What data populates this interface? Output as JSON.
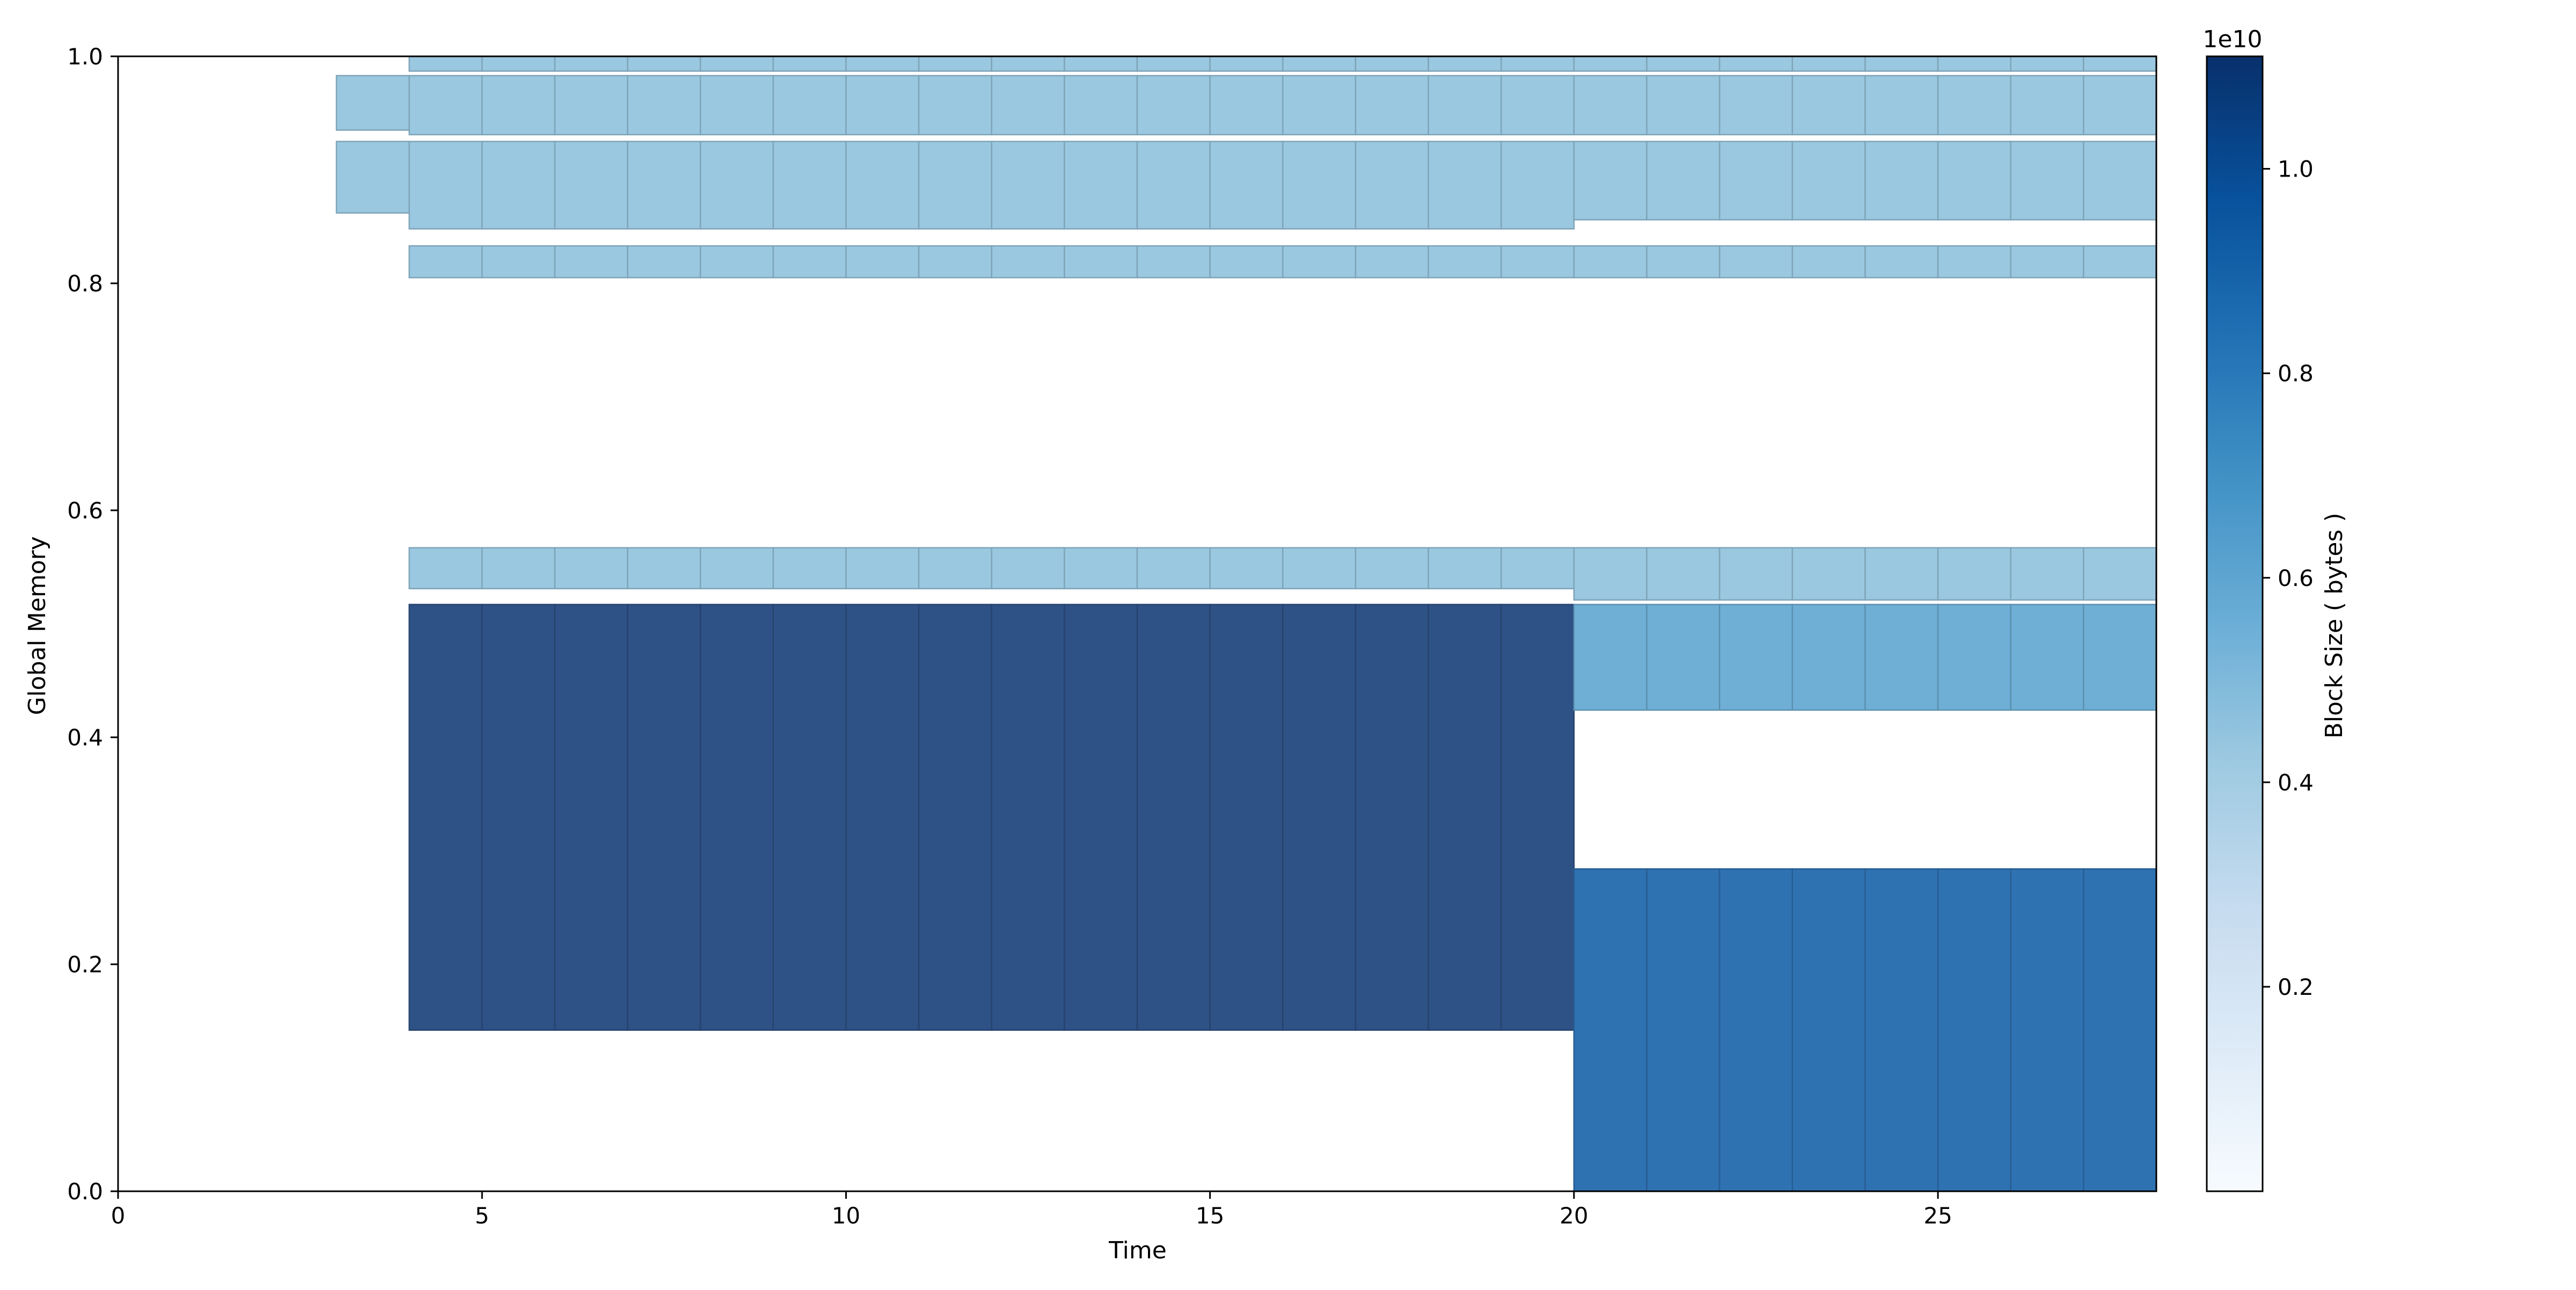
{
  "chart_data": {
    "type": "bar",
    "xlabel": "Time",
    "ylabel": "Global Memory",
    "xlim": [
      0,
      28
    ],
    "ylim": [
      0,
      1
    ],
    "xticks": [
      0,
      5,
      10,
      15,
      20,
      25
    ],
    "yticks": [
      0.0,
      0.2,
      0.4,
      0.6,
      0.8,
      1.0
    ],
    "xtick_labels": [
      "0",
      "5",
      "10",
      "15",
      "20",
      "25"
    ],
    "ytick_labels": [
      "0.0",
      "0.2",
      "0.4",
      "0.6",
      "0.8",
      "1.0"
    ],
    "grid": false,
    "colormap": "Blues",
    "colorbar": {
      "label": "Block Size ( bytes )",
      "exponent_label": "1e10",
      "range": [
        0,
        11100000000.0
      ],
      "ticks": [
        0.2,
        0.4,
        0.6,
        0.8,
        1.0
      ],
      "tick_labels": [
        "0.2",
        "0.4",
        "0.6",
        "0.8",
        "1.0"
      ]
    },
    "blocks": [
      {
        "t_start": 4,
        "t_end": 28,
        "y_start": 0.987,
        "y_end": 1.0,
        "size": 3300000000.0,
        "color": "#9ac8e0"
      },
      {
        "t_start": 3,
        "t_end": 4,
        "y_start": 0.935,
        "y_end": 0.983,
        "size": 3300000000.0,
        "color": "#9ac8e0"
      },
      {
        "t_start": 4,
        "t_end": 28,
        "y_start": 0.931,
        "y_end": 0.983,
        "size": 3300000000.0,
        "color": "#9ac8e0"
      },
      {
        "t_start": 3,
        "t_end": 4,
        "y_start": 0.862,
        "y_end": 0.925,
        "size": 3300000000.0,
        "color": "#9ac8e0"
      },
      {
        "t_start": 4,
        "t_end": 20,
        "y_start": 0.848,
        "y_end": 0.925,
        "size": 3300000000.0,
        "color": "#9ac8e0"
      },
      {
        "t_start": 20,
        "t_end": 28,
        "y_start": 0.856,
        "y_end": 0.925,
        "size": 3300000000.0,
        "color": "#9ac8e0"
      },
      {
        "t_start": 4,
        "t_end": 28,
        "y_start": 0.805,
        "y_end": 0.833,
        "size": 3300000000.0,
        "color": "#9ac8e0"
      },
      {
        "t_start": 4,
        "t_end": 20,
        "y_start": 0.531,
        "y_end": 0.567,
        "size": 3300000000.0,
        "color": "#9ac8e0"
      },
      {
        "t_start": 20,
        "t_end": 28,
        "y_start": 0.521,
        "y_end": 0.567,
        "size": 3300000000.0,
        "color": "#9ac8e0"
      },
      {
        "t_start": 4,
        "t_end": 20,
        "y_start": 0.142,
        "y_end": 0.517,
        "size": 10500000000.0,
        "color": "#2e5286"
      },
      {
        "t_start": 20,
        "t_end": 28,
        "y_start": 0.424,
        "y_end": 0.517,
        "size": 5000000000.0,
        "color": "#6fafd6"
      },
      {
        "t_start": 20,
        "t_end": 28,
        "y_start": 0.0,
        "y_end": 0.284,
        "size": 8000000000.0,
        "color": "#2f72b2"
      }
    ]
  }
}
